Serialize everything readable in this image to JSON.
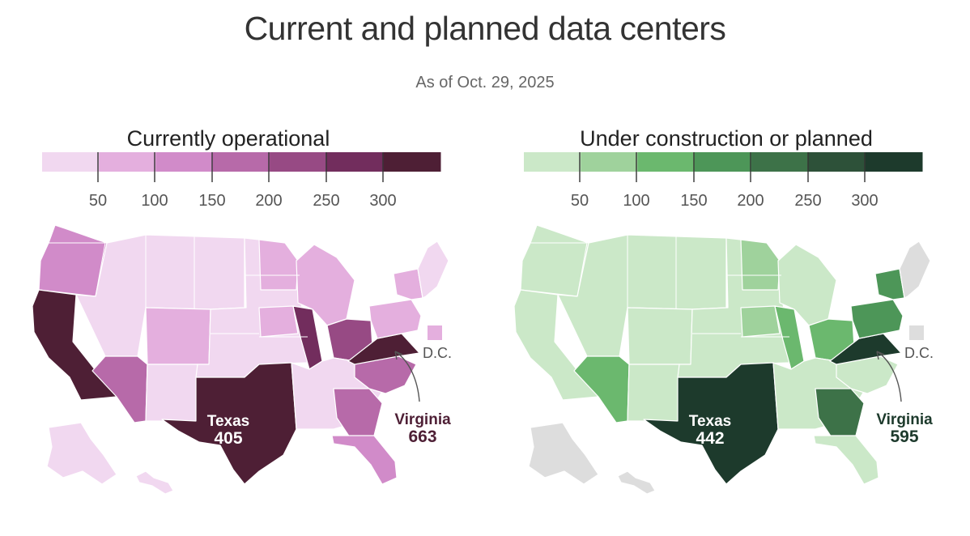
{
  "title": "Current and planned data centers",
  "subtitle": "As of Oct. 29, 2025",
  "panels": [
    {
      "title": "Currently operational",
      "scale": {
        "colors": [
          "#f1d8f0",
          "#e4afde",
          "#d18bc9",
          "#b76aa9",
          "#974a84",
          "#722d5d",
          "#4e1f35"
        ],
        "ticks": [
          "50",
          "100",
          "150",
          "200",
          "250",
          "300"
        ]
      },
      "no_data_color": "#dddddd",
      "region_colors": {
        "west-coast": "#4e1f35",
        "pacific-northwest": "#d18bc9",
        "mountain": "#f1d8f0",
        "colorado": "#e4afde",
        "southwest": "#b76aa9",
        "plains": "#f1d8f0",
        "texas": "#4e1f35",
        "upper-midwest": "#e4afde",
        "illinois": "#722d5d",
        "ohio": "#974a84",
        "great-lakes": "#e4afde",
        "south": "#f1d8f0",
        "georgia": "#b76aa9",
        "florida": "#d18bc9",
        "carolinas": "#b76aa9",
        "virginia": "#4e1f35",
        "mid-atlantic": "#e4afde",
        "new-england": "#f1d8f0",
        "alaska-hawaii": "#f1d8f0",
        "dc": "#e4afde"
      },
      "callouts": {
        "texas_name": "Texas",
        "texas_value": "405",
        "virginia_name": "Virginia",
        "virginia_value": "663",
        "dc": "D.C."
      },
      "accent_color": "#4e1f35"
    },
    {
      "title": "Under construction or planned",
      "scale": {
        "colors": [
          "#cbe8c8",
          "#9fd29c",
          "#6bb86e",
          "#4d9658",
          "#3d7248",
          "#2d5139",
          "#1d3a2c"
        ],
        "ticks": [
          "50",
          "100",
          "150",
          "200",
          "250",
          "300"
        ]
      },
      "no_data_color": "#dddddd",
      "region_colors": {
        "west-coast": "#cbe8c8",
        "pacific-northwest": "#cbe8c8",
        "mountain": "#cbe8c8",
        "colorado": "#cbe8c8",
        "southwest": "#6bb86e",
        "plains": "#cbe8c8",
        "texas": "#1d3a2c",
        "upper-midwest": "#9fd29c",
        "illinois": "#6bb86e",
        "ohio": "#6bb86e",
        "great-lakes": "#cbe8c8",
        "south": "#cbe8c8",
        "georgia": "#3d7248",
        "florida": "#cbe8c8",
        "carolinas": "#cbe8c8",
        "virginia": "#1d3a2c",
        "mid-atlantic": "#4d9658",
        "new-england": "#dddddd",
        "alaska-hawaii": "#dddddd",
        "dc": "#dddddd"
      },
      "callouts": {
        "texas_name": "Texas",
        "texas_value": "442",
        "virginia_name": "Virginia",
        "virginia_value": "595",
        "dc": "D.C."
      },
      "accent_color": "#1d3a2c"
    }
  ]
}
